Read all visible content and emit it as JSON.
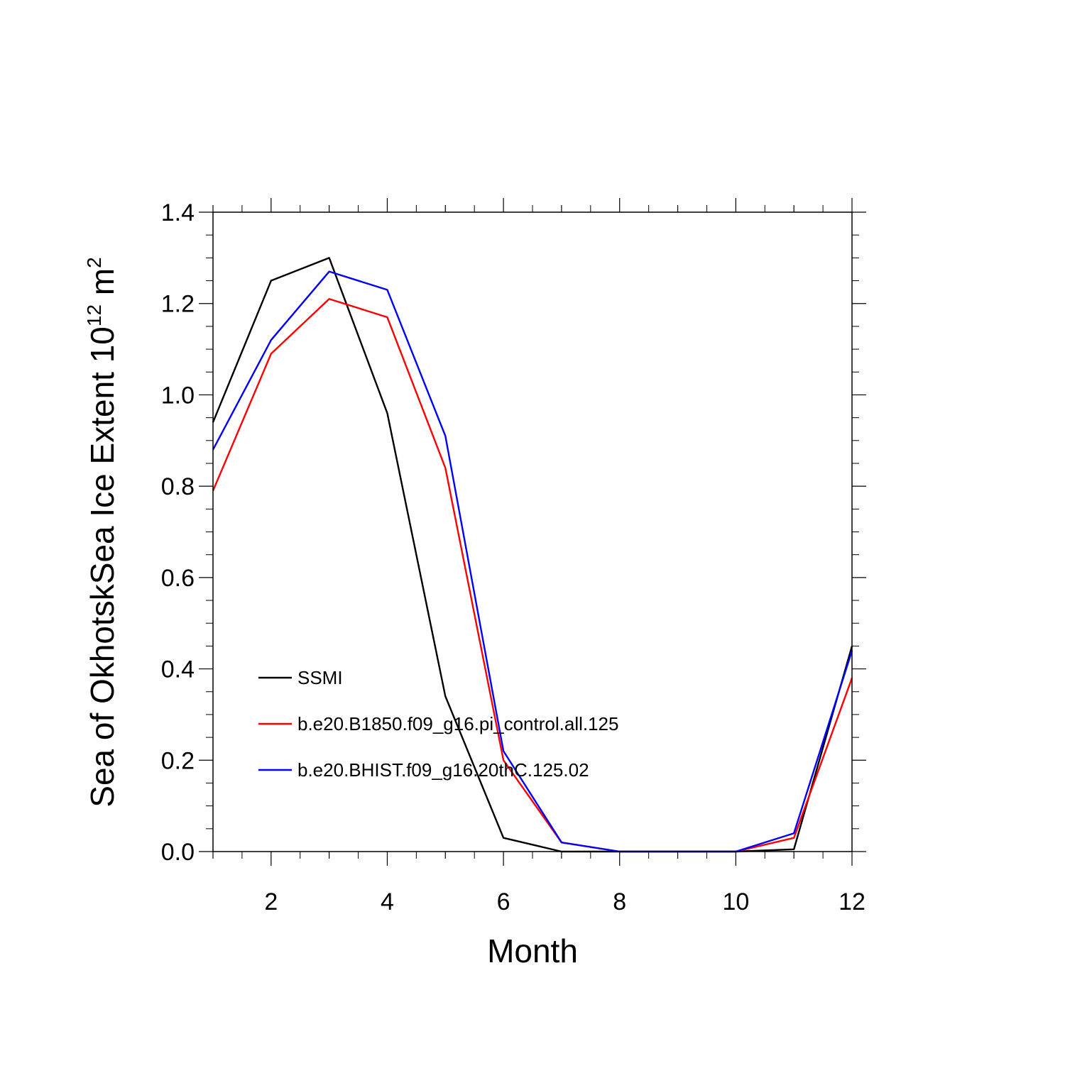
{
  "chart_data": {
    "type": "line",
    "xlabel": "Month",
    "ylabel": {
      "text": "Sea of OkhotskSea Ice Extent 10",
      "exp1": "12",
      "unit": " m",
      "exp2": "2"
    },
    "xlim": [
      1,
      12
    ],
    "ylim": [
      0,
      1.4
    ],
    "x_ticks": [
      2,
      4,
      6,
      8,
      10,
      12
    ],
    "y_ticks": [
      "0.0",
      "0.2",
      "0.4",
      "0.6",
      "0.8",
      "1.0",
      "1.2",
      "1.4"
    ],
    "grid": false,
    "legend_position": "lower-left",
    "x": [
      1,
      2,
      3,
      4,
      5,
      6,
      7,
      8,
      9,
      10,
      11,
      12
    ],
    "series": [
      {
        "name": "SSMI",
        "color": "#000000",
        "values": [
          0.94,
          1.25,
          1.3,
          0.96,
          0.34,
          0.03,
          0.0,
          0.0,
          0.0,
          0.0,
          0.005,
          0.45
        ]
      },
      {
        "name": "b.e20.B1850.f09_g16.pi_control.all.125",
        "color": "#ff0000",
        "values": [
          0.79,
          1.09,
          1.21,
          1.17,
          0.84,
          0.2,
          0.02,
          0.0,
          0.0,
          0.0,
          0.03,
          0.38
        ]
      },
      {
        "name": "b.e20.BHIST.f09_g16.20thC.125.02",
        "color": "#0000ff",
        "values": [
          0.88,
          1.12,
          1.27,
          1.23,
          0.91,
          0.22,
          0.02,
          0.0,
          0.0,
          0.0,
          0.04,
          0.44
        ]
      }
    ]
  }
}
